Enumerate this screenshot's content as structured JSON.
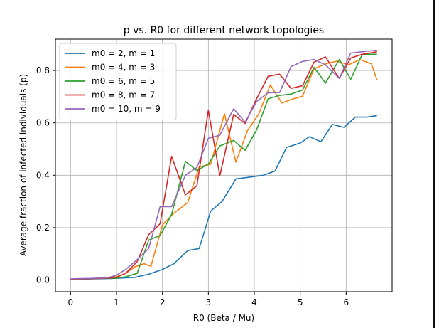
{
  "chart_data": {
    "type": "line",
    "title": "p vs. R0 for different network topologies",
    "xlabel": "R0 (Beta / Mu)",
    "ylabel": "Average fraction of infected individuals (p)",
    "xlim": [
      -0.33,
      7.0
    ],
    "ylim": [
      -0.045,
      0.92
    ],
    "xticks": [
      0,
      1,
      2,
      3,
      4,
      5,
      6
    ],
    "yticks": [
      0.0,
      0.2,
      0.4,
      0.6,
      0.8
    ],
    "ytick_labels": [
      "0.0",
      "0.2",
      "0.4",
      "0.6",
      "0.8"
    ],
    "grid": true,
    "legend_position": "top-left",
    "x": [
      0.0,
      0.25,
      0.5,
      0.75,
      1.0,
      1.125,
      1.25,
      1.375,
      1.5,
      1.625,
      1.75,
      2.0,
      2.25,
      2.5,
      2.625,
      2.75,
      2.875,
      3.0,
      3.125,
      3.25,
      3.375,
      3.5,
      3.625,
      3.75,
      3.875,
      4.0,
      4.125,
      4.25,
      4.375,
      4.5,
      4.625,
      4.75,
      4.875,
      5.0,
      5.125,
      5.25,
      5.375,
      5.5,
      5.625,
      5.75,
      5.875,
      6.0,
      6.125,
      6.25,
      6.375,
      6.5,
      6.67
    ],
    "series": [
      {
        "name": "m0 = 2, m = 1",
        "color": "#1f77b4",
        "x": [
          0,
          0.2,
          0.5,
          0.8,
          1.0,
          1.2,
          1.4,
          1.7,
          2.0,
          2.25,
          2.55,
          2.8,
          3.05,
          3.3,
          3.6,
          3.9,
          4.2,
          4.45,
          4.7,
          5.0,
          5.2,
          5.45,
          5.7,
          5.95,
          6.2,
          6.45,
          6.67
        ],
        "values": [
          0.003,
          0.003,
          0.004,
          0.005,
          0.006,
          0.008,
          0.01,
          0.022,
          0.04,
          0.062,
          0.112,
          0.12,
          0.263,
          0.3,
          0.386,
          0.393,
          0.4,
          0.416,
          0.506,
          0.523,
          0.547,
          0.528,
          0.594,
          0.583,
          0.622,
          0.622,
          0.628
        ]
      },
      {
        "name": "m0 = 4, m = 3",
        "color": "#ff7f0e",
        "x": [
          0,
          0.2,
          0.5,
          0.8,
          1.0,
          1.2,
          1.4,
          1.6,
          1.75,
          2.0,
          2.25,
          2.55,
          2.8,
          3.05,
          3.35,
          3.6,
          3.85,
          4.1,
          4.35,
          4.6,
          4.85,
          5.05,
          5.3,
          5.55,
          5.8,
          6.05,
          6.3,
          6.55,
          6.67
        ],
        "values": [
          0.003,
          0.004,
          0.006,
          0.008,
          0.012,
          0.025,
          0.05,
          0.062,
          0.052,
          0.21,
          0.255,
          0.295,
          0.432,
          0.442,
          0.635,
          0.45,
          0.57,
          0.635,
          0.745,
          0.676,
          0.692,
          0.702,
          0.806,
          0.825,
          0.836,
          0.822,
          0.842,
          0.825,
          0.764
        ]
      },
      {
        "name": "m0 = 6, m = 5",
        "color": "#2ca02c",
        "x": [
          0,
          0.2,
          0.5,
          0.8,
          1.0,
          1.2,
          1.45,
          1.7,
          1.95,
          2.2,
          2.5,
          2.75,
          3.0,
          3.25,
          3.55,
          3.8,
          4.05,
          4.3,
          4.55,
          4.8,
          5.05,
          5.3,
          5.55,
          5.85,
          6.1,
          6.35,
          6.67
        ],
        "values": [
          0.003,
          0.004,
          0.005,
          0.006,
          0.007,
          0.012,
          0.025,
          0.152,
          0.17,
          0.25,
          0.453,
          0.418,
          0.443,
          0.512,
          0.533,
          0.495,
          0.573,
          0.692,
          0.705,
          0.71,
          0.726,
          0.812,
          0.752,
          0.842,
          0.767,
          0.862,
          0.862
        ]
      },
      {
        "name": "m0 = 8, m = 7",
        "color": "#d62728",
        "x": [
          0,
          0.2,
          0.5,
          0.8,
          1.0,
          1.2,
          1.45,
          1.7,
          1.95,
          2.2,
          2.5,
          2.75,
          3.0,
          3.25,
          3.55,
          3.8,
          4.05,
          4.3,
          4.55,
          4.8,
          5.05,
          5.3,
          5.55,
          5.85,
          6.1,
          6.35,
          6.67
        ],
        "values": [
          0.003,
          0.004,
          0.005,
          0.007,
          0.01,
          0.025,
          0.07,
          0.173,
          0.215,
          0.472,
          0.325,
          0.36,
          0.648,
          0.398,
          0.632,
          0.598,
          0.692,
          0.778,
          0.786,
          0.732,
          0.742,
          0.832,
          0.852,
          0.77,
          0.848,
          0.862,
          0.872
        ]
      },
      {
        "name": "m0 = 10, m = 9",
        "color": "#9467bd",
        "x": [
          0,
          0.2,
          0.5,
          0.8,
          1.0,
          1.2,
          1.45,
          1.7,
          1.95,
          2.2,
          2.5,
          2.75,
          3.0,
          3.25,
          3.55,
          3.8,
          4.05,
          4.3,
          4.55,
          4.8,
          5.05,
          5.3,
          5.55,
          5.85,
          6.1,
          6.35,
          6.67
        ],
        "values": [
          0.004,
          0.005,
          0.006,
          0.008,
          0.018,
          0.04,
          0.078,
          0.12,
          0.28,
          0.28,
          0.4,
          0.43,
          0.541,
          0.553,
          0.654,
          0.603,
          0.682,
          0.715,
          0.716,
          0.815,
          0.835,
          0.842,
          0.822,
          0.77,
          0.867,
          0.872,
          0.878
        ]
      }
    ]
  }
}
